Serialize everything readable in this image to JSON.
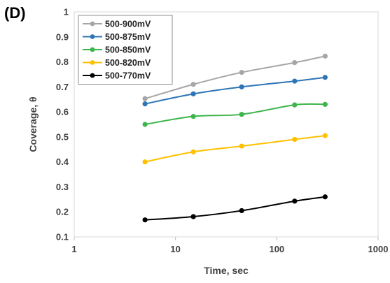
{
  "panel_label": "(D)",
  "chart_data": {
    "type": "line",
    "x_scale": "log",
    "xlabel": "Time, sec",
    "ylabel": "Coverage, θ",
    "xlim": [
      1,
      1000
    ],
    "ylim": [
      0.1,
      1
    ],
    "x_ticks": [
      "1",
      "10",
      "100",
      "1000"
    ],
    "y_ticks": [
      "0.1",
      "0.2",
      "0.3",
      "0.4",
      "0.5",
      "0.6",
      "0.7",
      "0.8",
      "0.9",
      "1"
    ],
    "grid": false,
    "legend_position": "top-left",
    "x": [
      5,
      15,
      45,
      150,
      300
    ],
    "series": [
      {
        "name": "500-900mV",
        "color": "#a6a6a6",
        "values": [
          0.653,
          0.71,
          0.758,
          0.797,
          0.823
        ]
      },
      {
        "name": "500-875mV",
        "color": "#2e75b6",
        "values": [
          0.632,
          0.672,
          0.7,
          0.723,
          0.738
        ]
      },
      {
        "name": "500-850mV",
        "color": "#3cb54a",
        "values": [
          0.55,
          0.582,
          0.59,
          0.628,
          0.63
        ]
      },
      {
        "name": "500-820mV",
        "color": "#ffc000",
        "values": [
          0.4,
          0.44,
          0.463,
          0.49,
          0.505
        ]
      },
      {
        "name": "500-770mV",
        "color": "#000000",
        "values": [
          0.168,
          0.181,
          0.205,
          0.243,
          0.26
        ]
      }
    ]
  }
}
